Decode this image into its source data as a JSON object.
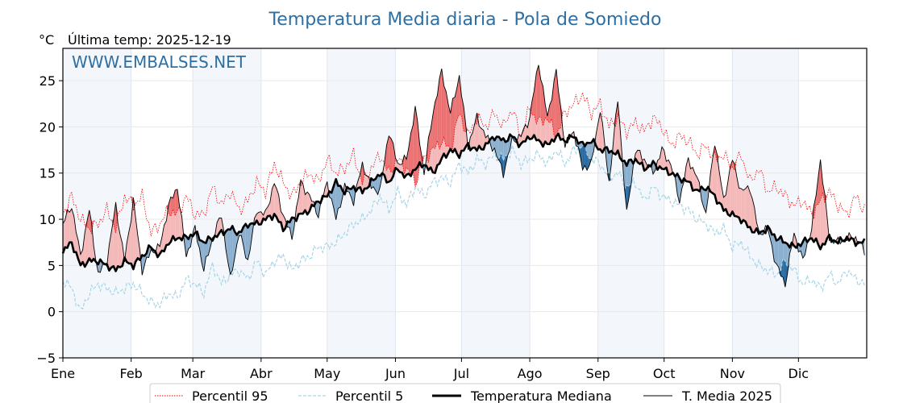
{
  "chart_data": {
    "type": "line",
    "title": "Temperatura Media diaria - Pola de Somiedo",
    "unit_label": "°C",
    "subtitle": "Última temp: 2025-12-19",
    "watermark": "WWW.EMBALSES.NET",
    "xlabel": "",
    "ylabel": "°C",
    "ylim": [
      -5,
      28.5
    ],
    "xlim_days": [
      0,
      365
    ],
    "grid": true,
    "yticks": [
      -5,
      0,
      5,
      10,
      15,
      20,
      25
    ],
    "ytick_labels": [
      "−5",
      "0",
      "5",
      "10",
      "15",
      "20",
      "25"
    ],
    "months": [
      "Ene",
      "Feb",
      "Mar",
      "Abr",
      "May",
      "Jun",
      "Jul",
      "Ago",
      "Sep",
      "Oct",
      "Nov",
      "Dic"
    ],
    "month_start_days": [
      0,
      31,
      59,
      90,
      120,
      151,
      181,
      212,
      243,
      273,
      304,
      334
    ],
    "legend": {
      "placement": "bottom-center",
      "entries": [
        {
          "label": "Percentil 95",
          "style": "dotted",
          "color": "#ff0000"
        },
        {
          "label": "Percentil 5",
          "style": "dashed",
          "color": "#a6d4e6"
        },
        {
          "label": "Temperatura Mediana",
          "style": "thick-solid",
          "color": "#000000"
        },
        {
          "label": "T. Media 2025",
          "style": "thin-solid",
          "color": "#000000"
        }
      ]
    },
    "colors": {
      "above_median": "#f4b8b8",
      "above_p95": "#ea7272",
      "below_median": "#8bafcf",
      "below_p5": "#2a6aa0",
      "p95": "#ff0000",
      "p5": "#a6d4e6",
      "title": "#2e6fa3",
      "month_band": "#f3f7fb"
    },
    "sample_days": [
      0,
      4,
      8,
      12,
      16,
      20,
      24,
      28,
      32,
      36,
      40,
      44,
      48,
      52,
      56,
      60,
      64,
      68,
      72,
      76,
      80,
      84,
      88,
      92,
      96,
      100,
      104,
      108,
      112,
      116,
      120,
      124,
      128,
      132,
      136,
      140,
      144,
      148,
      152,
      156,
      160,
      164,
      168,
      172,
      176,
      180,
      184,
      188,
      192,
      196,
      200,
      204,
      208,
      212,
      216,
      220,
      224,
      228,
      232,
      236,
      240,
      244,
      248,
      252,
      256,
      260,
      264,
      268,
      272,
      276,
      280,
      284,
      288,
      292,
      296,
      300,
      304,
      308,
      312,
      316,
      320,
      324,
      328,
      332,
      336,
      340,
      344,
      348,
      352,
      356,
      360,
      364
    ],
    "series": [
      {
        "name": "Percentil 95",
        "values": [
          10.5,
          12.5,
          10.0,
          9.0,
          9.5,
          11.0,
          9.0,
          12.5,
          11.5,
          12.5,
          8.5,
          9.5,
          11.0,
          10.5,
          12.5,
          10.5,
          10.5,
          13.5,
          11.5,
          13.0,
          11.0,
          12.0,
          14.0,
          13.0,
          16.0,
          14.0,
          12.5,
          14.0,
          15.0,
          14.0,
          16.5,
          15.0,
          15.5,
          17.0,
          14.0,
          15.5,
          17.0,
          15.0,
          16.5,
          15.5,
          14.0,
          16.5,
          17.5,
          18.5,
          17.5,
          21.5,
          19.0,
          21.0,
          20.0,
          21.5,
          20.0,
          22.0,
          19.0,
          22.0,
          20.5,
          21.0,
          19.0,
          21.5,
          22.5,
          23.5,
          21.5,
          22.5,
          20.0,
          21.0,
          19.5,
          20.5,
          19.5,
          21.0,
          20.0,
          18.0,
          19.0,
          18.5,
          17.0,
          18.0,
          16.5,
          17.0,
          15.5,
          17.0,
          14.0,
          15.5,
          13.0,
          13.5,
          12.5,
          11.5,
          12.0,
          10.5,
          12.0,
          13.0,
          11.5,
          10.5,
          12.5,
          11.0
        ]
      },
      {
        "name": "Percentil 5",
        "values": [
          3.5,
          2.5,
          0.0,
          2.0,
          3.0,
          2.5,
          2.0,
          2.5,
          3.0,
          2.0,
          1.0,
          0.8,
          2.0,
          1.5,
          3.5,
          3.0,
          2.0,
          5.0,
          3.0,
          4.0,
          4.5,
          3.5,
          5.5,
          4.0,
          5.5,
          6.0,
          4.5,
          5.5,
          6.0,
          7.0,
          7.0,
          7.5,
          8.5,
          9.5,
          10.0,
          11.0,
          12.5,
          11.0,
          13.0,
          11.5,
          13.5,
          12.5,
          14.0,
          14.5,
          14.0,
          16.0,
          15.0,
          16.5,
          16.0,
          17.0,
          16.5,
          17.5,
          16.0,
          16.5,
          17.0,
          16.0,
          17.5,
          16.0,
          17.5,
          18.0,
          16.5,
          16.0,
          14.5,
          15.0,
          13.5,
          14.0,
          12.0,
          13.5,
          12.5,
          12.0,
          11.5,
          11.0,
          10.0,
          9.5,
          8.5,
          9.0,
          7.0,
          7.5,
          6.0,
          5.0,
          4.5,
          4.0,
          5.5,
          4.5,
          3.0,
          3.5,
          2.5,
          4.0,
          3.0,
          4.5,
          3.5,
          3.0
        ]
      },
      {
        "name": "Temperatura Mediana",
        "values": [
          6.5,
          7.5,
          5.0,
          5.5,
          5.5,
          5.0,
          4.5,
          5.5,
          5.0,
          6.0,
          7.0,
          6.0,
          7.5,
          8.0,
          8.0,
          8.5,
          7.5,
          8.0,
          8.5,
          9.0,
          8.5,
          9.5,
          9.5,
          10.0,
          10.5,
          9.0,
          10.0,
          10.5,
          11.0,
          12.0,
          12.5,
          14.0,
          13.0,
          13.5,
          13.0,
          14.0,
          15.0,
          14.0,
          15.5,
          14.5,
          15.5,
          16.0,
          15.0,
          16.5,
          17.5,
          17.0,
          18.0,
          17.5,
          18.0,
          19.0,
          18.5,
          19.0,
          18.0,
          19.0,
          18.5,
          18.0,
          19.0,
          18.5,
          19.0,
          18.0,
          18.5,
          17.5,
          17.5,
          17.0,
          16.0,
          16.5,
          15.5,
          16.0,
          15.5,
          15.0,
          14.5,
          14.0,
          13.0,
          13.5,
          12.5,
          11.0,
          10.5,
          10.0,
          9.0,
          8.5,
          9.0,
          8.0,
          7.5,
          7.0,
          7.5,
          8.0,
          7.0,
          8.0,
          7.5,
          8.0,
          7.5,
          7.5
        ]
      },
      {
        "name": "T. Media 2025",
        "values": [
          9.5,
          11.5,
          6.0,
          11.0,
          4.0,
          5.5,
          11.5,
          5.5,
          12.0,
          4.5,
          6.5,
          7.0,
          11.5,
          13.5,
          6.0,
          9.0,
          4.5,
          8.0,
          10.5,
          3.5,
          8.5,
          5.5,
          11.0,
          10.5,
          14.0,
          10.5,
          8.0,
          14.0,
          12.5,
          10.5,
          14.0,
          10.0,
          13.5,
          12.0,
          16.0,
          13.5,
          13.0,
          19.5,
          16.0,
          16.5,
          22.0,
          15.0,
          21.5,
          26.0,
          21.5,
          25.5,
          18.0,
          21.0,
          19.0,
          17.5,
          15.0,
          18.5,
          19.0,
          21.0,
          27.0,
          21.0,
          26.0,
          18.0,
          19.5,
          15.5,
          16.0,
          22.0,
          14.0,
          23.0,
          10.5,
          17.5,
          16.5,
          15.0,
          17.5,
          16.0,
          12.0,
          16.5,
          14.5,
          10.5,
          18.5,
          12.0,
          16.5,
          13.0,
          13.5,
          8.5,
          9.0,
          5.0,
          3.0,
          8.5,
          5.5,
          9.0,
          16.5,
          8.0,
          7.5,
          8.0,
          8.0,
          6.5
        ]
      }
    ]
  }
}
